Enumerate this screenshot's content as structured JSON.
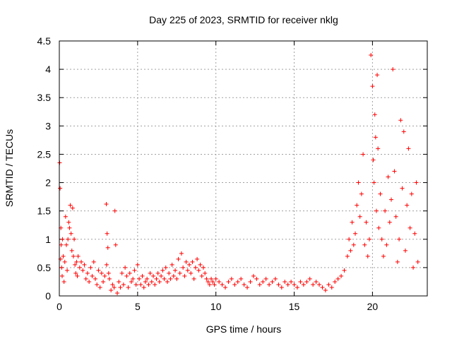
{
  "chart_data": {
    "type": "scatter",
    "title": "Day 225 of 2023, SRMTID for receiver nklg",
    "xlabel": "GPS time / hours",
    "ylabel": "SRMTID / TECUs",
    "xlim": [
      0,
      23.5
    ],
    "ylim": [
      0,
      4.5
    ],
    "grid": true,
    "marker": "plus",
    "color": "#ff0000",
    "xticks": [
      {
        "value": 0,
        "label": "0"
      },
      {
        "value": 5,
        "label": "5"
      },
      {
        "value": 10,
        "label": "10"
      },
      {
        "value": 15,
        "label": "15"
      },
      {
        "value": 20,
        "label": "20"
      }
    ],
    "yticks": [
      {
        "value": 0,
        "label": "0"
      },
      {
        "value": 0.5,
        "label": "0.5"
      },
      {
        "value": 1,
        "label": "1"
      },
      {
        "value": 1.5,
        "label": "1.5"
      },
      {
        "value": 2,
        "label": "2"
      },
      {
        "value": 2.5,
        "label": "2.5"
      },
      {
        "value": 3,
        "label": "3"
      },
      {
        "value": 3.5,
        "label": "3.5"
      },
      {
        "value": 4,
        "label": "4"
      },
      {
        "value": 4.5,
        "label": "4.5"
      }
    ],
    "series": [
      {
        "name": "SRMTID",
        "x": [
          0.02,
          0.05,
          0.08,
          0.1,
          0.12,
          0.15,
          0.18,
          0.2,
          0.25,
          0.3,
          0.35,
          0.4,
          0.45,
          0.5,
          0.55,
          0.6,
          0.65,
          0.7,
          0.75,
          0.8,
          0.85,
          0.9,
          0.95,
          1.0,
          1.05,
          1.1,
          1.15,
          1.2,
          1.3,
          1.4,
          1.5,
          1.6,
          1.7,
          1.8,
          1.9,
          2.0,
          2.1,
          2.2,
          2.3,
          2.4,
          2.5,
          2.6,
          2.7,
          2.8,
          2.9,
          3.0,
          3.02,
          3.05,
          3.1,
          3.15,
          3.2,
          3.3,
          3.4,
          3.5,
          3.55,
          3.6,
          3.7,
          3.8,
          3.9,
          4.0,
          4.1,
          4.2,
          4.3,
          4.4,
          4.5,
          4.6,
          4.7,
          4.8,
          4.9,
          5.0,
          5.1,
          5.2,
          5.3,
          5.4,
          5.5,
          5.6,
          5.7,
          5.8,
          5.9,
          6.0,
          6.1,
          6.2,
          6.3,
          6.4,
          6.5,
          6.6,
          6.7,
          6.8,
          6.9,
          7.0,
          7.1,
          7.2,
          7.3,
          7.4,
          7.5,
          7.6,
          7.7,
          7.8,
          7.9,
          8.0,
          8.1,
          8.2,
          8.3,
          8.4,
          8.5,
          8.6,
          8.7,
          8.8,
          8.9,
          9.0,
          9.1,
          9.2,
          9.3,
          9.4,
          9.5,
          9.6,
          9.7,
          9.8,
          9.9,
          10.0,
          10.2,
          10.4,
          10.6,
          10.8,
          11.0,
          11.2,
          11.4,
          11.6,
          11.8,
          12.0,
          12.2,
          12.4,
          12.6,
          12.8,
          13.0,
          13.2,
          13.4,
          13.6,
          13.8,
          14.0,
          14.2,
          14.4,
          14.6,
          14.8,
          15.0,
          15.2,
          15.4,
          15.6,
          15.8,
          16.0,
          16.2,
          16.4,
          16.6,
          16.8,
          17.0,
          17.2,
          17.4,
          17.6,
          17.8,
          18.0,
          18.2,
          18.4,
          18.5,
          18.6,
          18.7,
          18.8,
          18.9,
          19.0,
          19.1,
          19.2,
          19.3,
          19.4,
          19.5,
          19.6,
          19.7,
          19.8,
          19.9,
          20.0,
          20.05,
          20.1,
          20.15,
          20.2,
          20.25,
          20.3,
          20.35,
          20.4,
          20.5,
          20.6,
          20.7,
          20.8,
          20.9,
          21.0,
          21.1,
          21.2,
          21.3,
          21.4,
          21.5,
          21.6,
          21.7,
          21.8,
          21.9,
          22.0,
          22.1,
          22.2,
          22.3,
          22.4,
          22.5,
          22.6,
          22.7,
          22.8,
          22.9
        ],
        "y": [
          2.35,
          1.9,
          0.65,
          1.2,
          0.9,
          0.5,
          0.35,
          1.0,
          0.7,
          0.25,
          0.6,
          1.4,
          0.9,
          0.45,
          1.0,
          1.3,
          1.2,
          1.6,
          1.1,
          0.8,
          1.55,
          0.7,
          1.0,
          0.55,
          0.4,
          0.6,
          0.35,
          0.7,
          0.5,
          0.6,
          0.45,
          0.55,
          0.3,
          0.4,
          0.25,
          0.5,
          0.35,
          0.6,
          0.3,
          0.2,
          0.45,
          0.15,
          0.4,
          0.25,
          0.35,
          1.62,
          0.55,
          1.1,
          0.85,
          0.4,
          0.3,
          0.1,
          0.2,
          0.15,
          1.5,
          0.9,
          0.05,
          0.25,
          0.15,
          0.4,
          0.2,
          0.5,
          0.35,
          0.15,
          0.4,
          0.25,
          0.3,
          0.45,
          0.2,
          0.55,
          0.3,
          0.2,
          0.35,
          0.15,
          0.25,
          0.3,
          0.2,
          0.4,
          0.25,
          0.35,
          0.2,
          0.3,
          0.4,
          0.25,
          0.35,
          0.45,
          0.3,
          0.5,
          0.25,
          0.4,
          0.3,
          0.55,
          0.35,
          0.45,
          0.3,
          0.65,
          0.4,
          0.75,
          0.5,
          0.35,
          0.6,
          0.45,
          0.55,
          0.4,
          0.6,
          0.3,
          0.5,
          0.65,
          0.45,
          0.55,
          0.35,
          0.5,
          0.4,
          0.3,
          0.25,
          0.2,
          0.3,
          0.25,
          0.2,
          0.3,
          0.25,
          0.2,
          0.15,
          0.25,
          0.3,
          0.2,
          0.25,
          0.3,
          0.2,
          0.15,
          0.25,
          0.35,
          0.3,
          0.2,
          0.25,
          0.3,
          0.2,
          0.25,
          0.3,
          0.2,
          0.15,
          0.25,
          0.2,
          0.25,
          0.2,
          0.15,
          0.25,
          0.2,
          0.25,
          0.3,
          0.2,
          0.25,
          0.2,
          0.15,
          0.1,
          0.2,
          0.15,
          0.25,
          0.3,
          0.35,
          0.45,
          0.7,
          1.0,
          0.8,
          1.3,
          0.9,
          1.1,
          1.6,
          2.0,
          1.4,
          1.8,
          2.5,
          0.9,
          1.3,
          0.7,
          1.0,
          4.25,
          3.7,
          2.4,
          2.0,
          3.2,
          2.8,
          1.5,
          3.9,
          2.6,
          1.2,
          1.8,
          1.0,
          0.7,
          1.5,
          0.9,
          2.1,
          1.3,
          1.7,
          4.0,
          2.2,
          1.4,
          0.6,
          1.0,
          3.1,
          1.9,
          2.9,
          0.8,
          1.6,
          2.6,
          1.2,
          1.8,
          0.5,
          1.1,
          2.0,
          0.6
        ]
      }
    ]
  }
}
